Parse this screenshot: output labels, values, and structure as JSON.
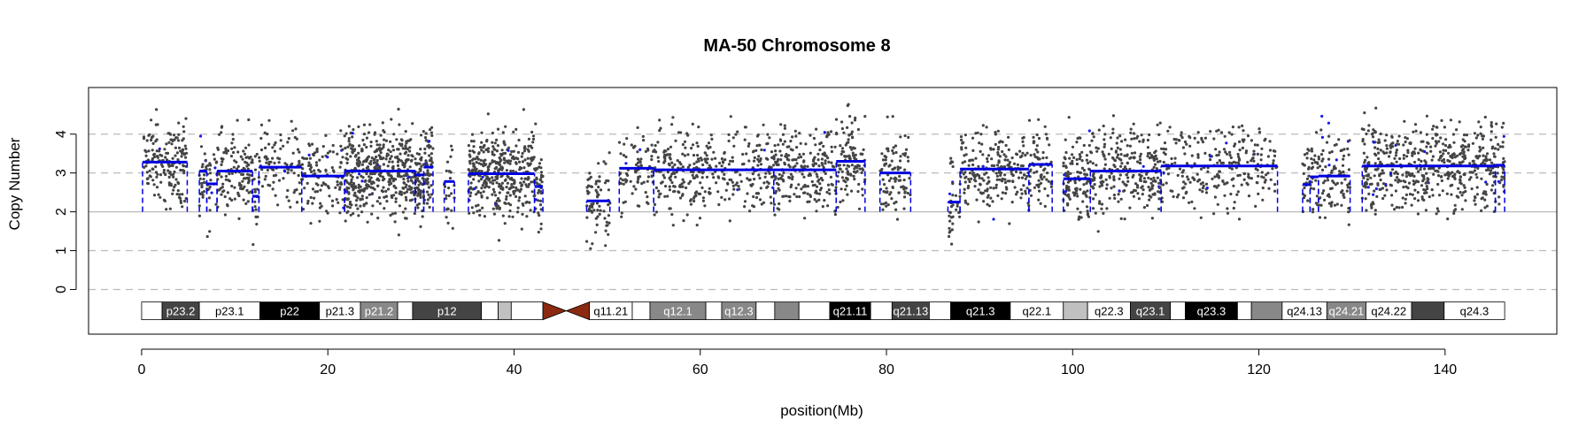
{
  "chart_data": {
    "type": "scatter",
    "title": "MA-50  Chromosome 8",
    "xlabel": "position(Mb)",
    "ylabel": "Copy Number",
    "xlim": [
      -5.7,
      152
    ],
    "ylim": [
      -1.15,
      5.2
    ],
    "xticks": [
      0,
      20,
      40,
      60,
      80,
      100,
      120,
      140
    ],
    "yticks": [
      0,
      1,
      2,
      3,
      4
    ],
    "gridlines": [
      0,
      1,
      2,
      3,
      4
    ],
    "baseline": 2,
    "colors": {
      "points": "#444444",
      "points_outlier": "#1a1ae6",
      "segments": "#0000e0",
      "grid": "#bbbbbb",
      "centromere": "#8b2a10"
    },
    "segments": [
      {
        "x0": 0.1,
        "x1": 4.9,
        "y": 3.28
      },
      {
        "x0": 6.2,
        "x1": 7.0,
        "y": 3.05
      },
      {
        "x0": 7.0,
        "x1": 8.1,
        "y": 2.72
      },
      {
        "x0": 8.1,
        "x1": 11.9,
        "y": 3.05
      },
      {
        "x0": 11.9,
        "x1": 12.6,
        "y": 2.4
      },
      {
        "x0": 12.6,
        "x1": 17.2,
        "y": 3.15
      },
      {
        "x0": 17.2,
        "x1": 21.8,
        "y": 2.92
      },
      {
        "x0": 21.8,
        "x1": 29.4,
        "y": 3.05
      },
      {
        "x0": 29.4,
        "x1": 30.3,
        "y": 2.95
      },
      {
        "x0": 30.3,
        "x1": 31.3,
        "y": 3.15
      },
      {
        "x0": 32.5,
        "x1": 33.6,
        "y": 2.78
      },
      {
        "x0": 35.1,
        "x1": 42.2,
        "y": 2.98
      },
      {
        "x0": 42.2,
        "x1": 43.1,
        "y": 2.65
      },
      {
        "x0": 47.8,
        "x1": 50.3,
        "y": 2.28
      },
      {
        "x0": 51.3,
        "x1": 55.0,
        "y": 3.12
      },
      {
        "x0": 55.0,
        "x1": 67.9,
        "y": 3.08
      },
      {
        "x0": 67.9,
        "x1": 74.6,
        "y": 3.08
      },
      {
        "x0": 74.6,
        "x1": 77.7,
        "y": 3.3
      },
      {
        "x0": 79.3,
        "x1": 82.6,
        "y": 3.0
      },
      {
        "x0": 86.6,
        "x1": 87.9,
        "y": 2.25
      },
      {
        "x0": 87.9,
        "x1": 95.3,
        "y": 3.1
      },
      {
        "x0": 95.3,
        "x1": 97.8,
        "y": 3.22
      },
      {
        "x0": 99.0,
        "x1": 101.9,
        "y": 2.85
      },
      {
        "x0": 101.9,
        "x1": 109.5,
        "y": 3.05
      },
      {
        "x0": 109.5,
        "x1": 122.0,
        "y": 3.18
      },
      {
        "x0": 124.7,
        "x1": 125.5,
        "y": 2.7
      },
      {
        "x0": 125.5,
        "x1": 126.4,
        "y": 2.9
      },
      {
        "x0": 126.4,
        "x1": 129.8,
        "y": 2.92
      },
      {
        "x0": 131.1,
        "x1": 145.4,
        "y": 3.18
      },
      {
        "x0": 145.4,
        "x1": 146.4,
        "y": 3.2
      }
    ],
    "point_clusters": [
      {
        "x": 0.2,
        "x1": 4.9,
        "n": 170
      },
      {
        "x": 6.2,
        "x1": 12.6,
        "n": 190
      },
      {
        "x": 12.6,
        "x1": 21.8,
        "n": 200
      },
      {
        "x": 21.8,
        "x1": 31.3,
        "n": 560
      },
      {
        "x": 32.5,
        "x1": 33.6,
        "n": 25
      },
      {
        "x": 35.1,
        "x1": 43.1,
        "n": 420
      },
      {
        "x": 47.8,
        "x1": 50.3,
        "n": 70
      },
      {
        "x": 51.3,
        "x1": 67.9,
        "n": 420
      },
      {
        "x": 67.9,
        "x1": 77.7,
        "n": 330
      },
      {
        "x": 79.3,
        "x1": 82.6,
        "n": 90
      },
      {
        "x": 86.6,
        "x1": 97.8,
        "n": 330
      },
      {
        "x": 99.0,
        "x1": 109.5,
        "n": 380
      },
      {
        "x": 109.5,
        "x1": 122.0,
        "n": 260
      },
      {
        "x": 124.7,
        "x1": 129.8,
        "n": 140
      },
      {
        "x": 131.1,
        "x1": 146.4,
        "n": 560
      }
    ],
    "ideogram": {
      "y": -0.55,
      "bands": [
        {
          "start": 0,
          "end": 2.2,
          "stain": "gneg",
          "label": ""
        },
        {
          "start": 2.2,
          "end": 6.2,
          "stain": "gpos75",
          "label": "p23.2"
        },
        {
          "start": 6.2,
          "end": 12.7,
          "stain": "gneg",
          "label": "p23.1"
        },
        {
          "start": 12.7,
          "end": 19.1,
          "stain": "gpos100",
          "label": "p22"
        },
        {
          "start": 19.1,
          "end": 23.5,
          "stain": "gneg",
          "label": "p21.3"
        },
        {
          "start": 23.5,
          "end": 27.5,
          "stain": "gpos50",
          "label": "p21.2"
        },
        {
          "start": 27.5,
          "end": 29.1,
          "stain": "gneg",
          "label": ""
        },
        {
          "start": 29.1,
          "end": 36.5,
          "stain": "gpos75",
          "label": "p12"
        },
        {
          "start": 36.5,
          "end": 38.3,
          "stain": "gneg",
          "label": ""
        },
        {
          "start": 38.3,
          "end": 39.7,
          "stain": "gpos25",
          "label": ""
        },
        {
          "start": 39.7,
          "end": 43.1,
          "stain": "gneg",
          "label": ""
        },
        {
          "start": 43.1,
          "end": 45.6,
          "stain": "acen",
          "label": ""
        },
        {
          "start": 45.6,
          "end": 48.1,
          "stain": "acen",
          "label": ""
        },
        {
          "start": 48.1,
          "end": 52.7,
          "stain": "gneg",
          "label": "q11.21"
        },
        {
          "start": 52.7,
          "end": 54.6,
          "stain": "gneg",
          "label": ""
        },
        {
          "start": 54.6,
          "end": 60.6,
          "stain": "gpos50",
          "label": "q12.1"
        },
        {
          "start": 60.6,
          "end": 62.3,
          "stain": "gneg",
          "label": ""
        },
        {
          "start": 62.3,
          "end": 66.0,
          "stain": "gpos50",
          "label": "q12.3"
        },
        {
          "start": 66.0,
          "end": 68.0,
          "stain": "gneg",
          "label": ""
        },
        {
          "start": 68.0,
          "end": 70.6,
          "stain": "gpos50",
          "label": ""
        },
        {
          "start": 70.6,
          "end": 73.9,
          "stain": "gneg",
          "label": ""
        },
        {
          "start": 73.9,
          "end": 78.3,
          "stain": "gpos100",
          "label": "q21.11"
        },
        {
          "start": 78.3,
          "end": 80.6,
          "stain": "gneg",
          "label": ""
        },
        {
          "start": 80.6,
          "end": 84.6,
          "stain": "gpos75",
          "label": "q21.13"
        },
        {
          "start": 84.6,
          "end": 86.9,
          "stain": "gneg",
          "label": ""
        },
        {
          "start": 86.9,
          "end": 93.3,
          "stain": "gpos100",
          "label": "q21.3"
        },
        {
          "start": 93.3,
          "end": 99.0,
          "stain": "gneg",
          "label": "q22.1"
        },
        {
          "start": 99.0,
          "end": 101.6,
          "stain": "gpos25",
          "label": ""
        },
        {
          "start": 101.6,
          "end": 106.2,
          "stain": "gneg",
          "label": "q22.3"
        },
        {
          "start": 106.2,
          "end": 110.5,
          "stain": "gpos75",
          "label": "q23.1"
        },
        {
          "start": 110.5,
          "end": 112.1,
          "stain": "gneg",
          "label": ""
        },
        {
          "start": 112.1,
          "end": 117.7,
          "stain": "gpos100",
          "label": "q23.3"
        },
        {
          "start": 117.7,
          "end": 119.2,
          "stain": "gneg",
          "label": ""
        },
        {
          "start": 119.2,
          "end": 122.5,
          "stain": "gpos50",
          "label": ""
        },
        {
          "start": 122.5,
          "end": 127.3,
          "stain": "gneg",
          "label": "q24.13"
        },
        {
          "start": 127.3,
          "end": 131.5,
          "stain": "gpos50",
          "label": "q24.21"
        },
        {
          "start": 131.5,
          "end": 136.4,
          "stain": "gneg",
          "label": "q24.22"
        },
        {
          "start": 136.4,
          "end": 139.9,
          "stain": "gpos75",
          "label": ""
        },
        {
          "start": 139.9,
          "end": 146.4,
          "stain": "gneg",
          "label": "q24.3"
        }
      ]
    }
  }
}
